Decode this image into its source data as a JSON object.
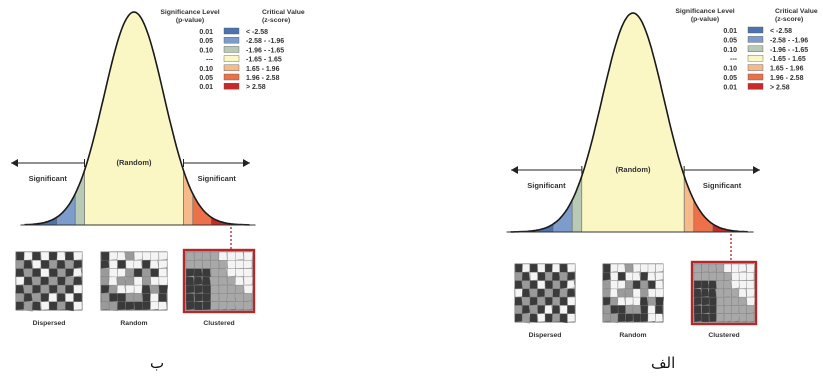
{
  "panel_b": {
    "caption": "ب",
    "legend_header_left": [
      "Significance Level",
      "(p-value)"
    ],
    "legend_header_right": [
      "Critical Value",
      "(z-score)"
    ],
    "legend_rows": [
      {
        "p": "0.01",
        "z": "< -2.58",
        "color": "#4a73b0"
      },
      {
        "p": "0.05",
        "z": "-2.58 - -1.96",
        "color": "#7d9ccb"
      },
      {
        "p": "0.10",
        "z": "-1.96 - -1.65",
        "color": "#b8c9b5"
      },
      {
        "p": "---",
        "z": "-1.65 - 1.65",
        "color": "#fbf7c4"
      },
      {
        "p": "0.10",
        "z": "1.65 - 1.96",
        "color": "#f6b98a"
      },
      {
        "p": "0.05",
        "z": "1.96 - 2.58",
        "color": "#ec7149"
      },
      {
        "p": "0.01",
        "z": "> 2.58",
        "color": "#c62a29"
      }
    ],
    "center_label": "(Random)",
    "left_label": "Significant",
    "right_label": "Significant",
    "map_labels": [
      "Dispersed",
      "Random",
      "Clustered"
    ]
  },
  "panel_a": {
    "caption": "الف",
    "legend_header_left": [
      "Significance Level",
      "(p-value)"
    ],
    "legend_header_right": [
      "Critical Value",
      "(z-score)"
    ],
    "legend_rows": [
      {
        "p": "0.01",
        "z": "< -2.58",
        "color": "#4a73b0"
      },
      {
        "p": "0.05",
        "z": "-2.58 - -1.96",
        "color": "#7d9ccb"
      },
      {
        "p": "0.10",
        "z": "-1.96 - -1.65",
        "color": "#b8c9b5"
      },
      {
        "p": "---",
        "z": "-1.65 - 1.65",
        "color": "#fbf7c4"
      },
      {
        "p": "0.10",
        "z": "1.65 - 1.96",
        "color": "#f6b98a"
      },
      {
        "p": "0.05",
        "z": "1.96 - 2.58",
        "color": "#ec7149"
      },
      {
        "p": "0.01",
        "z": "> 2.58",
        "color": "#c62a29"
      }
    ],
    "center_label": "(Random)",
    "left_label": "Significant",
    "right_label": "Significant",
    "map_labels": [
      "Dispersed",
      "Random",
      "Clustered"
    ]
  }
}
